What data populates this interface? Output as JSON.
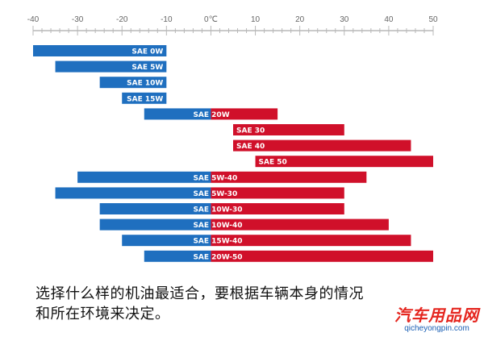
{
  "chart_data": {
    "type": "bar",
    "orientation": "horizontal-range",
    "title": "",
    "xlabel": "",
    "ylabel": "",
    "x_ticks": [
      -40,
      -30,
      -20,
      -10,
      0,
      10,
      20,
      30,
      40,
      50
    ],
    "x_tick_labels": [
      "-40",
      "-30",
      "-20",
      "-10",
      "0℃",
      "10",
      "20",
      "30",
      "40",
      "50"
    ],
    "xlim": [
      -40,
      50
    ],
    "grid": false,
    "legend": "none",
    "colors": {
      "cold": "#1f6fbf",
      "hot": "#d0102a",
      "axis": "#b8b8b8"
    },
    "series": [
      {
        "label": "SAE 0W",
        "low": -40,
        "high": -10
      },
      {
        "label": "SAE 5W",
        "low": -35,
        "high": -10
      },
      {
        "label": "SAE 10W",
        "low": -25,
        "high": -10
      },
      {
        "label": "SAE 15W",
        "low": -20,
        "high": -10
      },
      {
        "label": "SAE 20W",
        "low": -15,
        "high": 15
      },
      {
        "label": "SAE 30",
        "low": 5,
        "high": 30
      },
      {
        "label": "SAE 40",
        "low": 5,
        "high": 45
      },
      {
        "label": "SAE 50",
        "low": 10,
        "high": 50
      },
      {
        "label": "SAE 5W-40",
        "low": -30,
        "high": 35
      },
      {
        "label": "SAE 5W-30",
        "low": -35,
        "high": 30
      },
      {
        "label": "SAE 10W-30",
        "low": -25,
        "high": 30
      },
      {
        "label": "SAE 10W-40",
        "low": -25,
        "high": 40
      },
      {
        "label": "SAE 15W-40",
        "low": -20,
        "high": 45
      },
      {
        "label": "SAE 20W-50",
        "low": -15,
        "high": 50
      }
    ]
  },
  "caption": {
    "line1": "选择什么样的机油最适合，要根据车辆本身的情况",
    "line2": "和所在环境来决定。"
  },
  "watermark": {
    "logo": "汽车用品网",
    "url": "qicheyongpin.com"
  }
}
